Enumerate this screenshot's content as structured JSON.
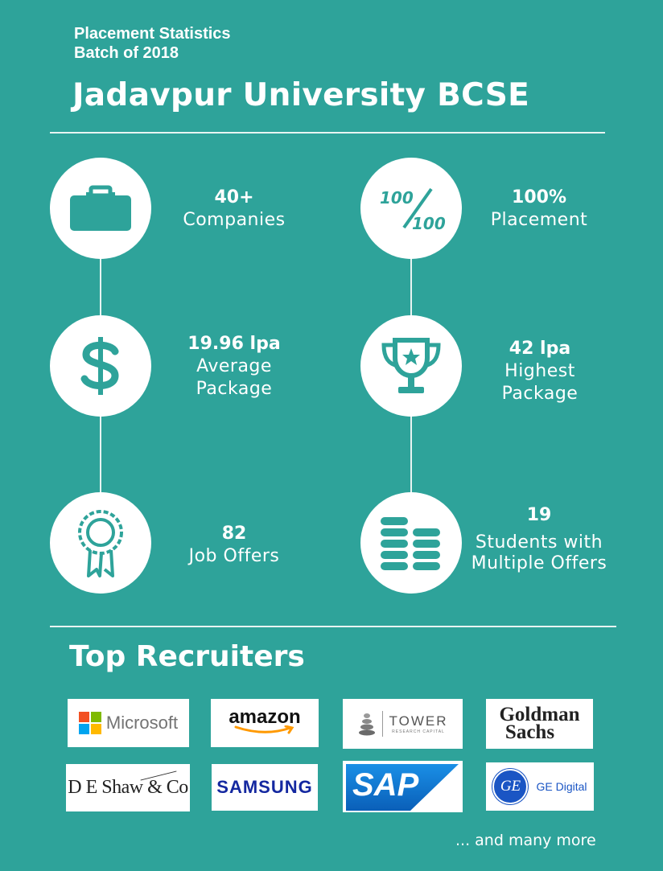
{
  "header": {
    "subtitle_line1": "Placement Statistics",
    "subtitle_line2": "Batch of 2018",
    "title": "Jadavpur University BCSE"
  },
  "stats": {
    "companies": {
      "value": "40+",
      "label": "Companies",
      "icon": "briefcase-icon"
    },
    "placement": {
      "value": "100%",
      "label": "Placement",
      "icon": "fraction-100-icon",
      "icon_top": "100",
      "icon_bottom": "100"
    },
    "average": {
      "value": "19.96 lpa",
      "label_line1": "Average",
      "label_line2": "Package",
      "icon": "dollar-icon"
    },
    "highest": {
      "value": "42 lpa",
      "label_line1": "Highest",
      "label_line2": "Package",
      "icon": "trophy-icon"
    },
    "offers": {
      "value": "82",
      "label": "Job Offers",
      "icon": "award-ribbon-icon"
    },
    "multiple": {
      "value": "19",
      "label_line1": "Students with",
      "label_line2": "Multiple Offers",
      "icon": "coin-stacks-icon"
    }
  },
  "recruiters": {
    "title": "Top Recruiters",
    "logos": {
      "microsoft": "Microsoft",
      "amazon": "amazon",
      "tower": "TOWER",
      "tower_sub": "RESEARCH CAPITAL",
      "goldman_line1": "Goldman",
      "goldman_line2": "Sachs",
      "deshaw": "D E Shaw & Co",
      "samsung": "SAMSUNG",
      "sap": "SAP",
      "ge_mark": "GE",
      "ge": "GE Digital"
    },
    "more": "... and many more"
  },
  "colors": {
    "background": "#2ea39a",
    "icon": "#2ea39a",
    "microsoft_red": "#f25022",
    "microsoft_green": "#7fba00",
    "microsoft_blue": "#00a4ef",
    "microsoft_yellow": "#ffb900",
    "amazon_orange": "#ff9900",
    "samsung_blue": "#1428a0",
    "sap_blue": "#0a6ed1",
    "ge_blue": "#1a55c4"
  }
}
